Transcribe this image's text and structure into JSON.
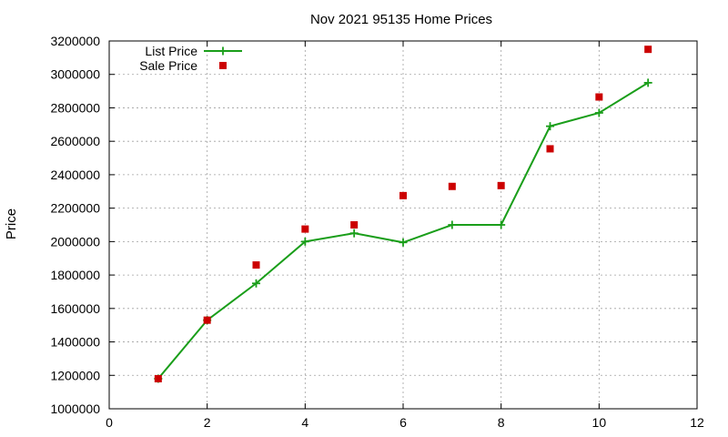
{
  "chart_data": {
    "type": "line",
    "title": "Nov 2021 95135 Home Prices",
    "xlabel": "",
    "ylabel": "Price",
    "xlim": [
      0,
      12
    ],
    "ylim": [
      1000000,
      3200000
    ],
    "xticks": [
      0,
      2,
      4,
      6,
      8,
      10,
      12
    ],
    "yticks": [
      1000000,
      1200000,
      1400000,
      1600000,
      1800000,
      2000000,
      2200000,
      2400000,
      2600000,
      2800000,
      3000000,
      3200000
    ],
    "grid": true,
    "legend": "top-left",
    "series": [
      {
        "name": "List Price",
        "style": "linespoints",
        "marker": "plus",
        "color": "#1a9e1a",
        "x": [
          1,
          2,
          3,
          4,
          5,
          6,
          7,
          8,
          9,
          10,
          11
        ],
        "y": [
          1180000,
          1530000,
          1750000,
          2000000,
          2050000,
          1995000,
          2100000,
          2100000,
          2690000,
          2770000,
          2950000
        ]
      },
      {
        "name": "Sale Price",
        "style": "points",
        "marker": "square",
        "color": "#cc0000",
        "x": [
          1,
          2,
          3,
          4,
          5,
          6,
          7,
          8,
          9,
          10,
          11
        ],
        "y": [
          1180000,
          1530000,
          1860000,
          2075000,
          2100000,
          2275000,
          2330000,
          2335000,
          2555000,
          2865000,
          3150000
        ]
      }
    ]
  }
}
